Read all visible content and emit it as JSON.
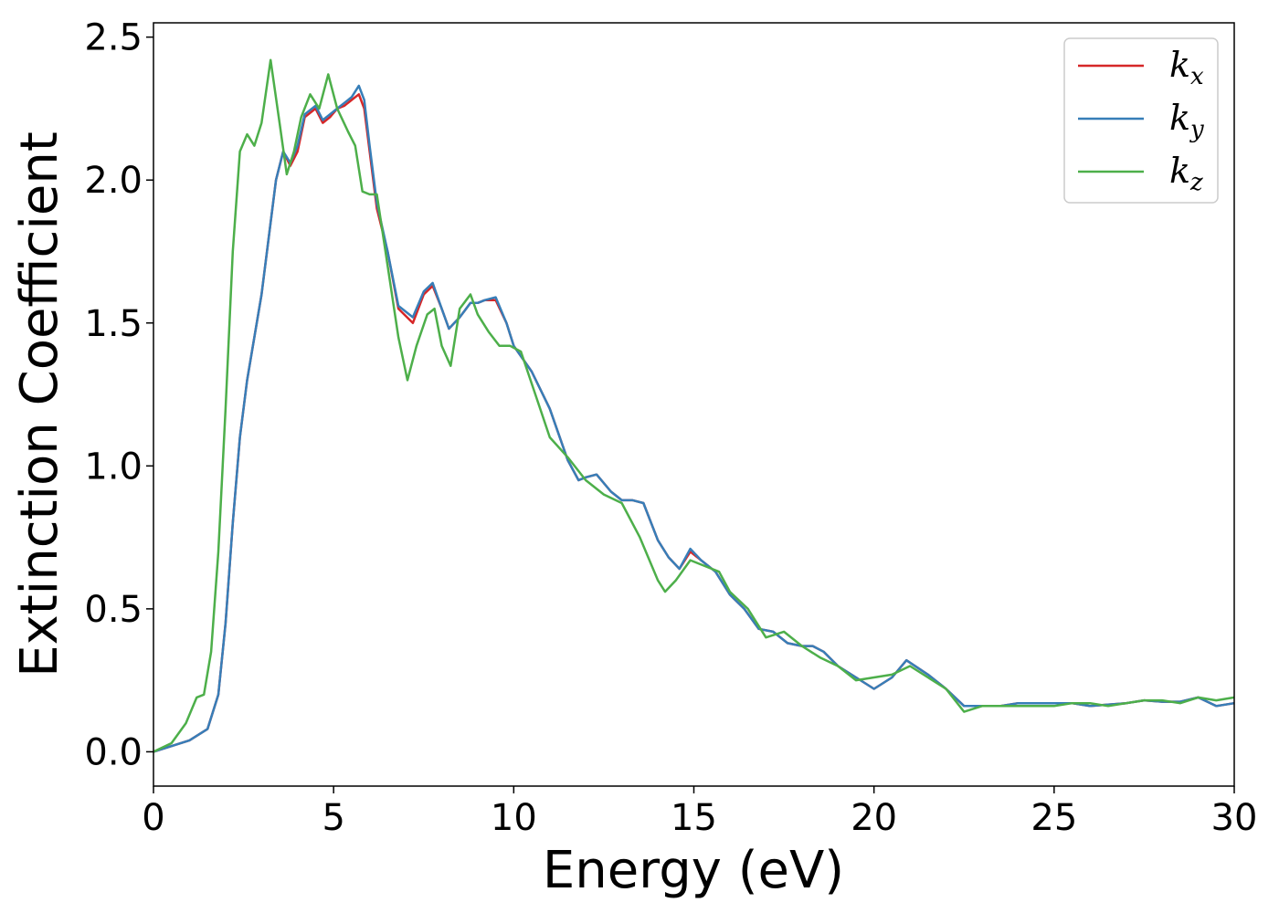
{
  "chart_data": {
    "type": "line",
    "title": "",
    "xlabel": "Energy (eV)",
    "ylabel": "Extinction Coefficient",
    "xlim": [
      0,
      30
    ],
    "ylim": [
      -0.12,
      2.55
    ],
    "xticks": [
      0,
      5,
      10,
      15,
      20,
      25,
      30
    ],
    "yticks": [
      0.0,
      0.5,
      1.0,
      1.5,
      2.0,
      2.5
    ],
    "grid": false,
    "legend_position": "top-right",
    "series": [
      {
        "name": "k_x",
        "label_base": "k",
        "label_sub": "x",
        "color": "#d62728",
        "x": [
          0,
          0.5,
          1,
          1.5,
          1.8,
          2,
          2.2,
          2.4,
          2.6,
          2.8,
          3,
          3.2,
          3.4,
          3.6,
          3.8,
          4,
          4.2,
          4.5,
          4.7,
          4.9,
          5.1,
          5.3,
          5.5,
          5.7,
          5.85,
          6,
          6.2,
          6.5,
          6.8,
          7.2,
          7.5,
          7.75,
          8,
          8.2,
          8.5,
          8.8,
          9,
          9.2,
          9.5,
          9.8,
          10,
          10.5,
          11,
          11.5,
          11.8,
          12,
          12.3,
          12.7,
          13,
          13.3,
          13.6,
          14,
          14.3,
          14.6,
          14.9,
          15.2,
          15.6,
          16,
          16.4,
          16.8,
          17.2,
          17.6,
          18,
          18.3,
          18.6,
          19,
          19.5,
          20,
          20.5,
          20.9,
          21.5,
          22,
          22.5,
          23,
          23.5,
          24,
          24.5,
          25,
          25.5,
          26,
          26.5,
          27,
          27.5,
          28,
          28.5,
          29,
          29.5,
          30
        ],
        "y": [
          0,
          0.02,
          0.04,
          0.08,
          0.2,
          0.45,
          0.8,
          1.1,
          1.3,
          1.45,
          1.6,
          1.8,
          2.0,
          2.1,
          2.05,
          2.1,
          2.22,
          2.25,
          2.2,
          2.22,
          2.25,
          2.26,
          2.28,
          2.3,
          2.25,
          2.1,
          1.9,
          1.75,
          1.55,
          1.5,
          1.6,
          1.63,
          1.55,
          1.48,
          1.52,
          1.57,
          1.57,
          1.58,
          1.58,
          1.5,
          1.42,
          1.33,
          1.2,
          1.02,
          0.95,
          0.96,
          0.97,
          0.91,
          0.88,
          0.88,
          0.87,
          0.74,
          0.68,
          0.64,
          0.7,
          0.67,
          0.63,
          0.55,
          0.5,
          0.43,
          0.42,
          0.38,
          0.37,
          0.37,
          0.35,
          0.3,
          0.26,
          0.22,
          0.26,
          0.32,
          0.27,
          0.22,
          0.16,
          0.16,
          0.16,
          0.17,
          0.17,
          0.17,
          0.17,
          0.16,
          0.165,
          0.17,
          0.18,
          0.175,
          0.175,
          0.19,
          0.16,
          0.17
        ]
      },
      {
        "name": "k_y",
        "label_base": "k",
        "label_sub": "y",
        "color": "#377eb8",
        "x": [
          0,
          0.5,
          1,
          1.5,
          1.8,
          2,
          2.2,
          2.4,
          2.6,
          2.8,
          3,
          3.2,
          3.4,
          3.6,
          3.8,
          4,
          4.2,
          4.5,
          4.7,
          4.9,
          5.1,
          5.3,
          5.5,
          5.7,
          5.85,
          6,
          6.2,
          6.5,
          6.8,
          7.2,
          7.5,
          7.75,
          8,
          8.2,
          8.5,
          8.8,
          9,
          9.2,
          9.5,
          9.8,
          10,
          10.5,
          11,
          11.5,
          11.8,
          12,
          12.3,
          12.7,
          13,
          13.3,
          13.6,
          14,
          14.3,
          14.6,
          14.9,
          15.2,
          15.6,
          16,
          16.4,
          16.8,
          17.2,
          17.6,
          18,
          18.3,
          18.6,
          19,
          19.5,
          20,
          20.5,
          20.9,
          21.5,
          22,
          22.5,
          23,
          23.5,
          24,
          24.5,
          25,
          25.5,
          26,
          26.5,
          27,
          27.5,
          28,
          28.5,
          29,
          29.5,
          30
        ],
        "y": [
          0,
          0.02,
          0.04,
          0.08,
          0.2,
          0.45,
          0.8,
          1.1,
          1.3,
          1.45,
          1.6,
          1.8,
          2.0,
          2.1,
          2.06,
          2.12,
          2.23,
          2.26,
          2.21,
          2.23,
          2.25,
          2.27,
          2.29,
          2.33,
          2.28,
          2.12,
          1.92,
          1.75,
          1.56,
          1.52,
          1.61,
          1.64,
          1.55,
          1.48,
          1.52,
          1.57,
          1.57,
          1.58,
          1.59,
          1.5,
          1.42,
          1.33,
          1.2,
          1.02,
          0.95,
          0.96,
          0.97,
          0.91,
          0.88,
          0.88,
          0.87,
          0.74,
          0.68,
          0.64,
          0.71,
          0.67,
          0.63,
          0.55,
          0.5,
          0.43,
          0.42,
          0.38,
          0.37,
          0.37,
          0.35,
          0.3,
          0.26,
          0.22,
          0.26,
          0.32,
          0.27,
          0.22,
          0.16,
          0.16,
          0.16,
          0.17,
          0.17,
          0.17,
          0.17,
          0.16,
          0.165,
          0.17,
          0.18,
          0.175,
          0.175,
          0.19,
          0.16,
          0.17
        ]
      },
      {
        "name": "k_z",
        "label_base": "k",
        "label_sub": "z",
        "color": "#4daf4a",
        "x": [
          0,
          0.5,
          0.9,
          1.2,
          1.4,
          1.6,
          1.8,
          2.0,
          2.2,
          2.4,
          2.6,
          2.8,
          3.0,
          3.25,
          3.5,
          3.7,
          3.9,
          4.1,
          4.35,
          4.6,
          4.85,
          5.1,
          5.4,
          5.6,
          5.8,
          6.0,
          6.2,
          6.5,
          6.8,
          7.05,
          7.3,
          7.6,
          7.8,
          8.0,
          8.25,
          8.5,
          8.8,
          9.0,
          9.3,
          9.6,
          9.9,
          10.2,
          10.6,
          11,
          11.5,
          12,
          12.5,
          13,
          13.5,
          14,
          14.2,
          14.5,
          14.9,
          15.3,
          15.7,
          16,
          16.5,
          17,
          17.5,
          18,
          18.5,
          19,
          19.5,
          20,
          20.5,
          21,
          21.5,
          22,
          22.5,
          23,
          23.5,
          24,
          24.5,
          25,
          25.5,
          26,
          26.5,
          27,
          27.5,
          28,
          28.5,
          29,
          29.5,
          30
        ],
        "y": [
          0,
          0.03,
          0.1,
          0.19,
          0.2,
          0.35,
          0.7,
          1.2,
          1.75,
          2.1,
          2.16,
          2.12,
          2.2,
          2.42,
          2.2,
          2.02,
          2.1,
          2.22,
          2.3,
          2.25,
          2.37,
          2.25,
          2.17,
          2.12,
          1.96,
          1.95,
          1.95,
          1.7,
          1.45,
          1.3,
          1.42,
          1.53,
          1.55,
          1.42,
          1.35,
          1.55,
          1.6,
          1.53,
          1.47,
          1.42,
          1.42,
          1.4,
          1.25,
          1.1,
          1.03,
          0.95,
          0.9,
          0.87,
          0.75,
          0.6,
          0.56,
          0.6,
          0.67,
          0.65,
          0.63,
          0.56,
          0.5,
          0.4,
          0.42,
          0.37,
          0.33,
          0.3,
          0.25,
          0.26,
          0.27,
          0.3,
          0.26,
          0.22,
          0.14,
          0.16,
          0.16,
          0.16,
          0.16,
          0.16,
          0.17,
          0.17,
          0.16,
          0.17,
          0.18,
          0.18,
          0.17,
          0.19,
          0.18,
          0.19
        ]
      }
    ]
  }
}
